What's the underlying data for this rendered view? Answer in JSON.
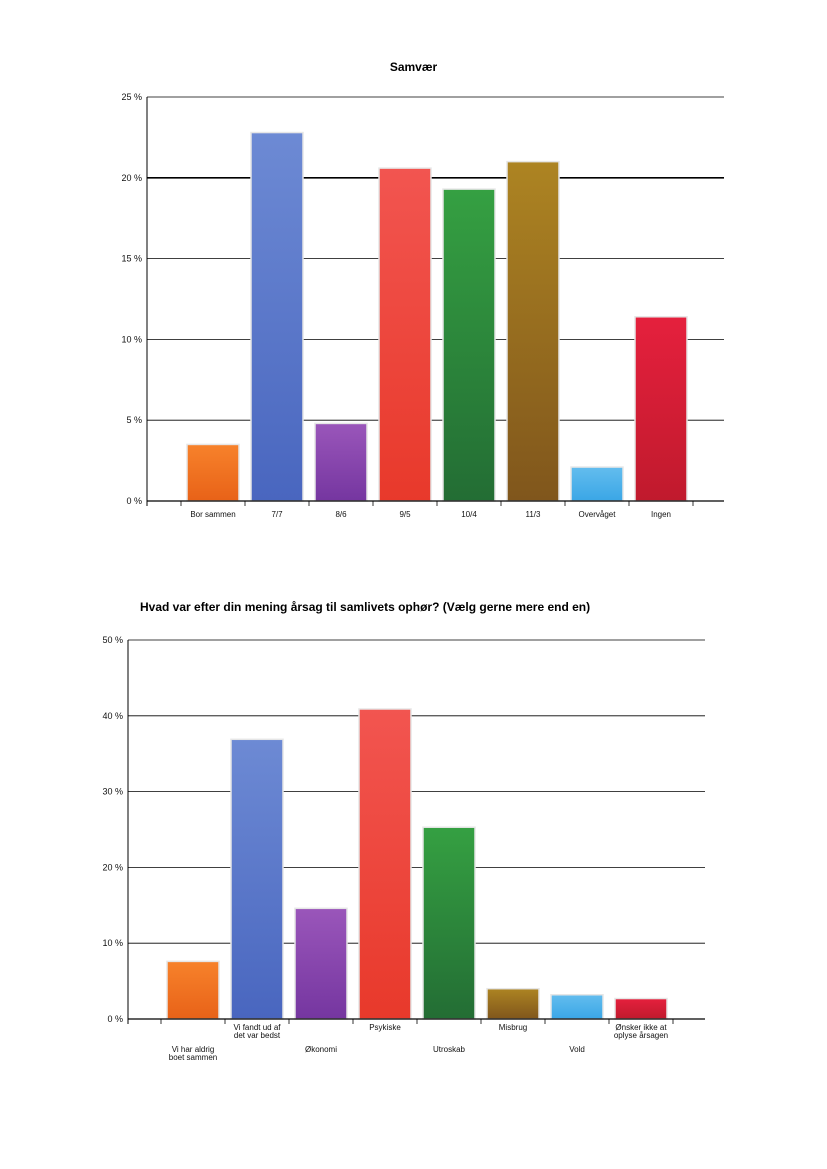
{
  "charts": [
    {
      "type": "bar",
      "title": "Samvær",
      "categories": [
        "Bor sammen",
        "7/7",
        "8/6",
        "9/5",
        "10/4",
        "11/3",
        "Overvåget",
        "Ingen"
      ],
      "values": [
        3.5,
        22.8,
        4.8,
        20.6,
        19.3,
        21.0,
        2.1,
        11.4
      ],
      "ylim": [
        0,
        25
      ],
      "yticks": [
        0,
        5,
        10,
        15,
        20,
        25
      ],
      "ytick_labels": [
        "0 %",
        "5 %",
        "10 %",
        "15 %",
        "20 %",
        "25 %"
      ],
      "grid": true,
      "legend": "none"
    },
    {
      "type": "bar",
      "title": "Hvad var efter din mening årsag til samlivets ophør? (Vælg gerne mere end en)",
      "categories": [
        "Vi har aldrig boet sammen",
        "Vi fandt ud af det var bedst",
        "Økonomi",
        "Psykiske",
        "Utroskab",
        "Misbrug",
        "Vold",
        "Ønsker ikke at oplyse årsagen"
      ],
      "values": [
        7.6,
        36.9,
        14.6,
        40.9,
        25.3,
        4.0,
        3.2,
        2.7
      ],
      "ylim": [
        0,
        50
      ],
      "yticks": [
        0,
        10,
        20,
        30,
        40,
        50
      ],
      "ytick_labels": [
        "0 %",
        "10 %",
        "20 %",
        "30 %",
        "40 %",
        "50 %"
      ],
      "grid": true,
      "legend": "none"
    }
  ],
  "colors": {
    "bars": [
      [
        "#f7822b",
        "#e86218"
      ],
      [
        "#6d8ad4",
        "#4966bf"
      ],
      [
        "#9a56ba",
        "#7536a0"
      ],
      [
        "#f25550",
        "#e8392b"
      ],
      [
        "#35a042",
        "#236d34"
      ],
      [
        "#ad8422",
        "#80561c"
      ],
      [
        "#63bdee",
        "#3aa6e6"
      ],
      [
        "#e5203d",
        "#c01a2d"
      ]
    ]
  }
}
